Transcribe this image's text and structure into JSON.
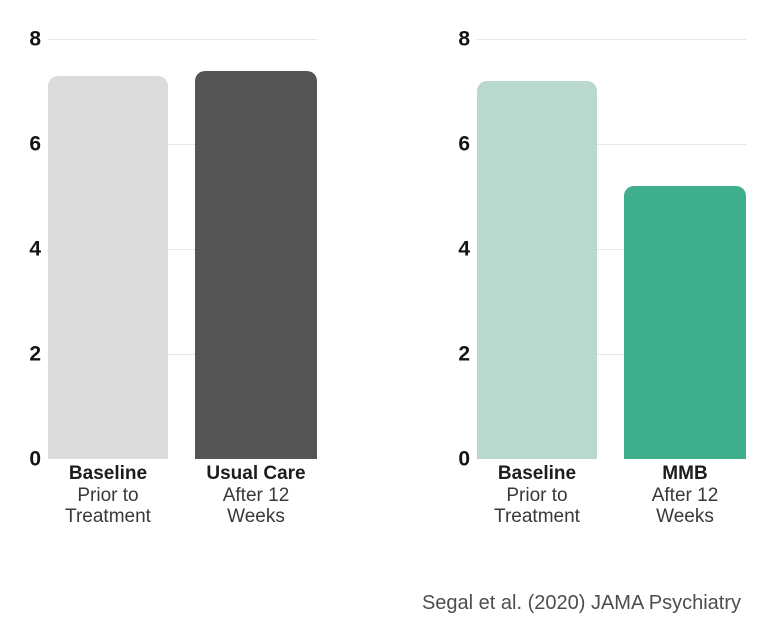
{
  "page": {
    "background": "#ffffff"
  },
  "citation": "Segal et al. (2020) JAMA Psychiatry",
  "colors": {
    "gridline": "#e7e7e7",
    "tick_label": "#141414",
    "category_bold": "#1c1c1c",
    "category_regular": "#383838",
    "citation": "#4d4d4d"
  },
  "chart_data": [
    {
      "type": "bar",
      "title": "",
      "xlabel": "",
      "ylabel": "",
      "ylim": [
        0,
        8
      ],
      "yticks": [
        8,
        6,
        4,
        2,
        0
      ],
      "grid": true,
      "legend": "none",
      "categories": [
        "Baseline Prior to Treatment",
        "Usual Care After 12 Weeks"
      ],
      "values": [
        7.3,
        7.4
      ],
      "bars": [
        {
          "name": "Baseline",
          "sublabel": [
            "Prior to",
            "Treatment"
          ],
          "value": 7.3,
          "color": "#dbdbdb"
        },
        {
          "name": "Usual Care",
          "sublabel": [
            "After 12",
            "Weeks"
          ],
          "value": 7.4,
          "color": "#555555"
        }
      ]
    },
    {
      "type": "bar",
      "title": "",
      "xlabel": "",
      "ylabel": "",
      "ylim": [
        0,
        8
      ],
      "yticks": [
        8,
        6,
        4,
        2,
        0
      ],
      "grid": true,
      "legend": "none",
      "categories": [
        "Baseline Prior to Treatment",
        "MMB After 12 Weeks"
      ],
      "values": [
        7.2,
        5.2
      ],
      "bars": [
        {
          "name": "Baseline",
          "sublabel": [
            "Prior to",
            "Treatment"
          ],
          "value": 7.2,
          "color": "#b9d8ce"
        },
        {
          "name": "MMB",
          "sublabel": [
            "After 12",
            "Weeks"
          ],
          "value": 5.2,
          "color": "#3fae8c"
        }
      ]
    }
  ]
}
